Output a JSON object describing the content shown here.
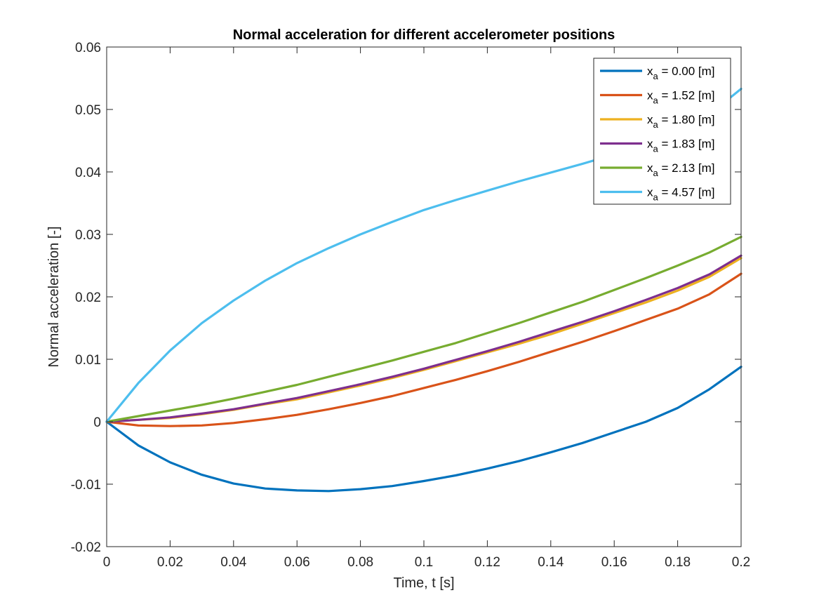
{
  "chart_data": {
    "type": "line",
    "title": "Normal acceleration for different accelerometer positions",
    "xlabel": "Time, t [s]",
    "ylabel": "Normal acceleration [-]",
    "xlim": [
      0,
      0.2
    ],
    "ylim": [
      -0.02,
      0.06
    ],
    "x_ticks": [
      0,
      0.02,
      0.04,
      0.06,
      0.08,
      0.1,
      0.12,
      0.14,
      0.16,
      0.18,
      0.2
    ],
    "x_tick_labels": [
      "0",
      "0.02",
      "0.04",
      "0.06",
      "0.08",
      "0.1",
      "0.12",
      "0.14",
      "0.16",
      "0.18",
      "0.2"
    ],
    "y_ticks": [
      -0.02,
      -0.01,
      0,
      0.01,
      0.02,
      0.03,
      0.04,
      0.05,
      0.06
    ],
    "y_tick_labels": [
      "-0.02",
      "-0.01",
      "0",
      "0.01",
      "0.02",
      "0.03",
      "0.04",
      "0.05",
      "0.06"
    ],
    "grid": false,
    "legend_position": "top-right",
    "x": [
      0,
      0.01,
      0.02,
      0.03,
      0.04,
      0.05,
      0.06,
      0.07,
      0.08,
      0.09,
      0.1,
      0.11,
      0.12,
      0.13,
      0.14,
      0.15,
      0.16,
      0.17,
      0.18,
      0.19,
      0.2
    ],
    "series": [
      {
        "name_base": "x",
        "name_sub": "a",
        "name_rest": " = 0.00 [m]",
        "color": "#0072BD",
        "values": [
          0,
          -0.0038,
          -0.0065,
          -0.0085,
          -0.0099,
          -0.0107,
          -0.011,
          -0.0111,
          -0.0108,
          -0.0103,
          -0.0095,
          -0.0086,
          -0.0075,
          -0.0063,
          -0.0049,
          -0.0034,
          -0.0017,
          0.0,
          0.0022,
          0.0052,
          0.0088
        ]
      },
      {
        "name_base": "x",
        "name_sub": "a",
        "name_rest": " = 1.52 [m]",
        "color": "#D95319",
        "values": [
          0,
          -0.0006,
          -0.0007,
          -0.0006,
          -0.0002,
          0.0004,
          0.0011,
          0.002,
          0.003,
          0.0041,
          0.0054,
          0.0067,
          0.0081,
          0.0096,
          0.0112,
          0.0128,
          0.0145,
          0.0163,
          0.0181,
          0.0204,
          0.0237
        ]
      },
      {
        "name_base": "x",
        "name_sub": "a",
        "name_rest": " = 1.80 [m]",
        "color": "#EDB120",
        "values": [
          0,
          0.0003,
          0.0006,
          0.0012,
          0.0019,
          0.0028,
          0.0036,
          0.0047,
          0.0058,
          0.007,
          0.0083,
          0.0097,
          0.0111,
          0.0125,
          0.014,
          0.0157,
          0.0174,
          0.0191,
          0.021,
          0.0232,
          0.0262
        ]
      },
      {
        "name_base": "x",
        "name_sub": "a",
        "name_rest": " = 1.83 [m]",
        "color": "#7E2F8E",
        "values": [
          0,
          0.0003,
          0.0007,
          0.0013,
          0.002,
          0.0029,
          0.0038,
          0.0049,
          0.006,
          0.0072,
          0.0085,
          0.0099,
          0.0113,
          0.0128,
          0.0144,
          0.016,
          0.0177,
          0.0195,
          0.0214,
          0.0236,
          0.0266
        ]
      },
      {
        "name_base": "x",
        "name_sub": "a",
        "name_rest": " = 2.13 [m]",
        "color": "#77AC30",
        "values": [
          0,
          0.0009,
          0.0018,
          0.0027,
          0.0037,
          0.0048,
          0.0059,
          0.0072,
          0.0085,
          0.0098,
          0.0112,
          0.0126,
          0.0142,
          0.0158,
          0.0175,
          0.0192,
          0.0211,
          0.023,
          0.025,
          0.0271,
          0.0296
        ]
      },
      {
        "name_base": "x",
        "name_sub": "a",
        "name_rest": " = 4.57 [m]",
        "color": "#4DBEEE",
        "values": [
          0,
          0.0062,
          0.0114,
          0.0158,
          0.0194,
          0.0226,
          0.0254,
          0.0278,
          0.03,
          0.032,
          0.0339,
          0.0355,
          0.037,
          0.0385,
          0.0399,
          0.0413,
          0.0428,
          0.0443,
          0.046,
          0.0492,
          0.0533
        ]
      }
    ]
  }
}
